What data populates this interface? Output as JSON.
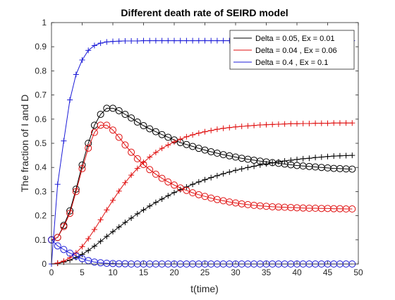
{
  "chart_data": {
    "type": "line",
    "title": "Different death rate of SEIRD model",
    "xlabel": "t(time)",
    "ylabel": "The fraction of I and D",
    "xlim": [
      0,
      50
    ],
    "ylim": [
      0,
      1
    ],
    "x_ticks": [
      0,
      5,
      10,
      15,
      20,
      25,
      30,
      35,
      40,
      45,
      50
    ],
    "y_ticks": [
      0,
      0.1,
      0.2,
      0.3,
      0.4,
      0.5,
      0.6,
      0.7,
      0.8,
      0.9,
      1
    ],
    "grid": false,
    "legend_position": "top-right",
    "series": [
      {
        "name": "Delta = 0.05, Ex = 0.01",
        "color": "#000000",
        "curves": [
          {
            "marker": "circle",
            "x": [
              0,
              1,
              2,
              3,
              4,
              5,
              6,
              7,
              8,
              9,
              10,
              11,
              12,
              13,
              14,
              15,
              16,
              17,
              18,
              19,
              20,
              21,
              22,
              23,
              24,
              25,
              26,
              27,
              28,
              29,
              30,
              31,
              32,
              33,
              34,
              35,
              36,
              37,
              38,
              39,
              40,
              41,
              42,
              43,
              44,
              45,
              46,
              47,
              48,
              49
            ],
            "y": [
              0.1,
              0.11,
              0.16,
              0.22,
              0.31,
              0.41,
              0.5,
              0.575,
              0.62,
              0.645,
              0.645,
              0.635,
              0.62,
              0.605,
              0.588,
              0.573,
              0.56,
              0.548,
              0.536,
              0.525,
              0.514,
              0.503,
              0.495,
              0.487,
              0.479,
              0.472,
              0.465,
              0.459,
              0.453,
              0.448,
              0.443,
              0.438,
              0.434,
              0.43,
              0.426,
              0.423,
              0.42,
              0.417,
              0.414,
              0.411,
              0.408,
              0.406,
              0.404,
              0.402,
              0.4,
              0.398,
              0.396,
              0.395,
              0.394,
              0.393
            ]
          },
          {
            "marker": "plus",
            "x": [
              0,
              1,
              2,
              3,
              4,
              5,
              6,
              7,
              8,
              9,
              10,
              11,
              12,
              13,
              14,
              15,
              16,
              17,
              18,
              19,
              20,
              21,
              22,
              23,
              24,
              25,
              26,
              27,
              28,
              29,
              30,
              31,
              32,
              33,
              34,
              35,
              36,
              37,
              38,
              39,
              40,
              41,
              42,
              43,
              44,
              45,
              46,
              47,
              48,
              49
            ],
            "y": [
              0.0,
              0.003,
              0.008,
              0.016,
              0.027,
              0.04,
              0.056,
              0.074,
              0.094,
              0.114,
              0.134,
              0.153,
              0.172,
              0.19,
              0.208,
              0.224,
              0.24,
              0.255,
              0.269,
              0.283,
              0.296,
              0.308,
              0.319,
              0.33,
              0.34,
              0.349,
              0.358,
              0.366,
              0.374,
              0.381,
              0.388,
              0.394,
              0.4,
              0.405,
              0.41,
              0.415,
              0.419,
              0.423,
              0.427,
              0.43,
              0.433,
              0.436,
              0.438,
              0.441,
              0.443,
              0.445,
              0.447,
              0.448,
              0.449,
              0.45
            ]
          }
        ]
      },
      {
        "name": "Delta = 0.04 , Ex = 0.06",
        "color": "#e01010",
        "curves": [
          {
            "marker": "circle",
            "x": [
              0,
              1,
              2,
              3,
              4,
              5,
              6,
              7,
              8,
              9,
              10,
              11,
              12,
              13,
              14,
              15,
              16,
              17,
              18,
              19,
              20,
              21,
              22,
              23,
              24,
              25,
              26,
              27,
              28,
              29,
              30,
              31,
              32,
              33,
              34,
              35,
              36,
              37,
              38,
              39,
              40,
              41,
              42,
              43,
              44,
              45,
              46,
              47,
              48,
              49
            ],
            "y": [
              0.1,
              0.11,
              0.155,
              0.21,
              0.3,
              0.395,
              0.48,
              0.545,
              0.575,
              0.575,
              0.555,
              0.525,
              0.493,
              0.463,
              0.436,
              0.412,
              0.391,
              0.372,
              0.355,
              0.34,
              0.327,
              0.315,
              0.305,
              0.295,
              0.287,
              0.28,
              0.273,
              0.267,
              0.262,
              0.257,
              0.253,
              0.249,
              0.246,
              0.243,
              0.241,
              0.239,
              0.237,
              0.236,
              0.235,
              0.234,
              0.233,
              0.232,
              0.231,
              0.231,
              0.23,
              0.23,
              0.229,
              0.229,
              0.228,
              0.228
            ]
          },
          {
            "marker": "plus",
            "x": [
              0,
              1,
              2,
              3,
              4,
              5,
              6,
              7,
              8,
              9,
              10,
              11,
              12,
              13,
              14,
              15,
              16,
              17,
              18,
              19,
              20,
              21,
              22,
              23,
              24,
              25,
              26,
              27,
              28,
              29,
              30,
              31,
              32,
              33,
              34,
              35,
              36,
              37,
              38,
              39,
              40,
              41,
              42,
              43,
              44,
              45,
              46,
              47,
              48,
              49
            ],
            "y": [
              0.0,
              0.004,
              0.012,
              0.026,
              0.046,
              0.072,
              0.105,
              0.143,
              0.183,
              0.224,
              0.264,
              0.302,
              0.337,
              0.368,
              0.396,
              0.421,
              0.443,
              0.462,
              0.479,
              0.493,
              0.506,
              0.517,
              0.527,
              0.535,
              0.542,
              0.548,
              0.553,
              0.558,
              0.562,
              0.565,
              0.568,
              0.57,
              0.572,
              0.574,
              0.576,
              0.577,
              0.578,
              0.579,
              0.58,
              0.581,
              0.581,
              0.582,
              0.582,
              0.583,
              0.583,
              0.583,
              0.584,
              0.584,
              0.584,
              0.584
            ]
          }
        ]
      },
      {
        "name": "Delta = 0.4 , Ex = 0.1",
        "color": "#1c1cd8",
        "curves": [
          {
            "marker": "circle",
            "x": [
              0,
              1,
              2,
              3,
              4,
              5,
              6,
              7,
              8,
              9,
              10,
              11,
              12,
              13,
              14,
              15,
              16,
              17,
              18,
              19,
              20,
              21,
              22,
              23,
              24,
              25,
              26,
              27,
              28,
              29,
              30,
              31,
              32,
              33,
              34,
              35,
              36,
              37,
              38,
              39,
              40,
              41,
              42,
              43,
              44,
              45,
              46,
              47,
              48,
              49
            ],
            "y": [
              0.1,
              0.075,
              0.06,
              0.045,
              0.033,
              0.022,
              0.014,
              0.008,
              0.005,
              0.003,
              0.002,
              0.001,
              0.001,
              0.0,
              0.0,
              0.0,
              0.0,
              0.0,
              0.0,
              0.0,
              0.0,
              0.0,
              0.0,
              0.0,
              0.0,
              0.0,
              0.0,
              0.0,
              0.0,
              0.0,
              0.0,
              0.0,
              0.0,
              0.0,
              0.0,
              0.0,
              0.0,
              0.0,
              0.0,
              0.0,
              0.0,
              0.0,
              0.0,
              0.0,
              0.0,
              0.0,
              0.0,
              0.0,
              0.0,
              0.0
            ]
          },
          {
            "marker": "plus",
            "x": [
              0,
              1,
              2,
              3,
              4,
              5,
              6,
              7,
              8,
              9,
              10,
              11,
              12,
              13,
              14,
              15,
              16,
              17,
              18,
              19,
              20,
              21,
              22,
              23,
              24,
              25,
              26,
              27,
              28,
              29,
              30,
              31,
              32,
              33,
              34,
              35,
              36,
              37,
              38,
              39,
              40,
              41,
              42,
              43,
              44,
              45,
              46,
              47,
              48,
              49
            ],
            "y": [
              0.0,
              0.33,
              0.51,
              0.68,
              0.785,
              0.845,
              0.885,
              0.905,
              0.915,
              0.92,
              0.922,
              0.923,
              0.924,
              0.924,
              0.924,
              0.925,
              0.925,
              0.925,
              0.925,
              0.925,
              0.925,
              0.925,
              0.925,
              0.925,
              0.925,
              0.925,
              0.925,
              0.925,
              0.925,
              0.925,
              0.925,
              0.925,
              0.925,
              0.925,
              0.925,
              0.925,
              0.925,
              0.925,
              0.925,
              0.925,
              0.925,
              0.925,
              0.925,
              0.925,
              0.925,
              0.925,
              0.925,
              0.925,
              0.925,
              0.925
            ]
          }
        ]
      }
    ]
  }
}
